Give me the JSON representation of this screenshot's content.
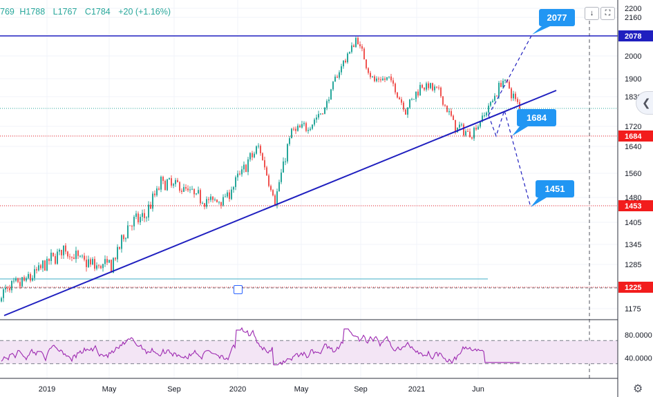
{
  "ohlc": {
    "open": "769",
    "high": "H1788",
    "low": "L1767",
    "close": "C1784",
    "change": "+20 (+1.16%)"
  },
  "toolbar": {
    "down_icon": "↓",
    "fullscreen_icon": "⛶"
  },
  "colors": {
    "up": "#26a69a",
    "down": "#ef5350",
    "trend": "#1f1fbf",
    "callout": "#2196f3",
    "rsi": "#9c27b0",
    "red_tag": "#f21c1c",
    "navy_tag": "#1f1fbf"
  },
  "chart_data": {
    "type": "candlestick",
    "price_axis": {
      "ticks": [
        2200,
        2160,
        2078,
        2000,
        1900,
        1830,
        1720,
        1684,
        1640,
        1560,
        1480,
        1453,
        1405,
        1345,
        1285,
        1225,
        1175
      ]
    },
    "rsi_axis": {
      "ticks": [
        "80.0000",
        "40.0000"
      ],
      "upper_band": 70,
      "lower_band": 30
    },
    "x_labels": [
      "2019",
      "May",
      "Sep",
      "2020",
      "May",
      "Sep",
      "2021",
      "Jun"
    ],
    "price_path": [
      [
        "2018-10",
        1205
      ],
      [
        "2018-11",
        1225
      ],
      [
        "2018-12",
        1250
      ],
      [
        "2019-01",
        1290
      ],
      [
        "2019-02",
        1330
      ],
      [
        "2019-03",
        1300
      ],
      [
        "2019-04",
        1280
      ],
      [
        "2019-05",
        1285
      ],
      [
        "2019-06",
        1400
      ],
      [
        "2019-07",
        1420
      ],
      [
        "2019-08",
        1530
      ],
      [
        "2019-09",
        1520
      ],
      [
        "2019-10",
        1490
      ],
      [
        "2019-11",
        1465
      ],
      [
        "2019-12",
        1480
      ],
      [
        "2020-01",
        1570
      ],
      [
        "2020-02",
        1640
      ],
      [
        "2020-03",
        1470
      ],
      [
        "2020-04",
        1700
      ],
      [
        "2020-05",
        1720
      ],
      [
        "2020-06",
        1780
      ],
      [
        "2020-07",
        1950
      ],
      [
        "2020-08",
        2070
      ],
      [
        "2020-09",
        1890
      ],
      [
        "2020-10",
        1900
      ],
      [
        "2020-11",
        1780
      ],
      [
        "2020-12",
        1880
      ],
      [
        "2021-01",
        1850
      ],
      [
        "2021-02",
        1720
      ],
      [
        "2021-03",
        1690
      ],
      [
        "2021-04",
        1780
      ],
      [
        "2021-05",
        1900
      ],
      [
        "2021-06",
        1784
      ]
    ],
    "levels": [
      {
        "price": 2078,
        "label": "2078",
        "style": "solid",
        "color": "navy"
      },
      {
        "price": 1784,
        "label": "1784",
        "style": "dotted",
        "color": "green"
      },
      {
        "price": 1684,
        "label": "1684",
        "style": "dotted",
        "color": "red"
      },
      {
        "price": 1453,
        "label": "1453",
        "style": "dotted",
        "color": "red"
      },
      {
        "price": 1225,
        "label": "1225",
        "style": "dotted",
        "color": "red"
      }
    ],
    "callouts": [
      "2077",
      "1684",
      "1451"
    ]
  }
}
